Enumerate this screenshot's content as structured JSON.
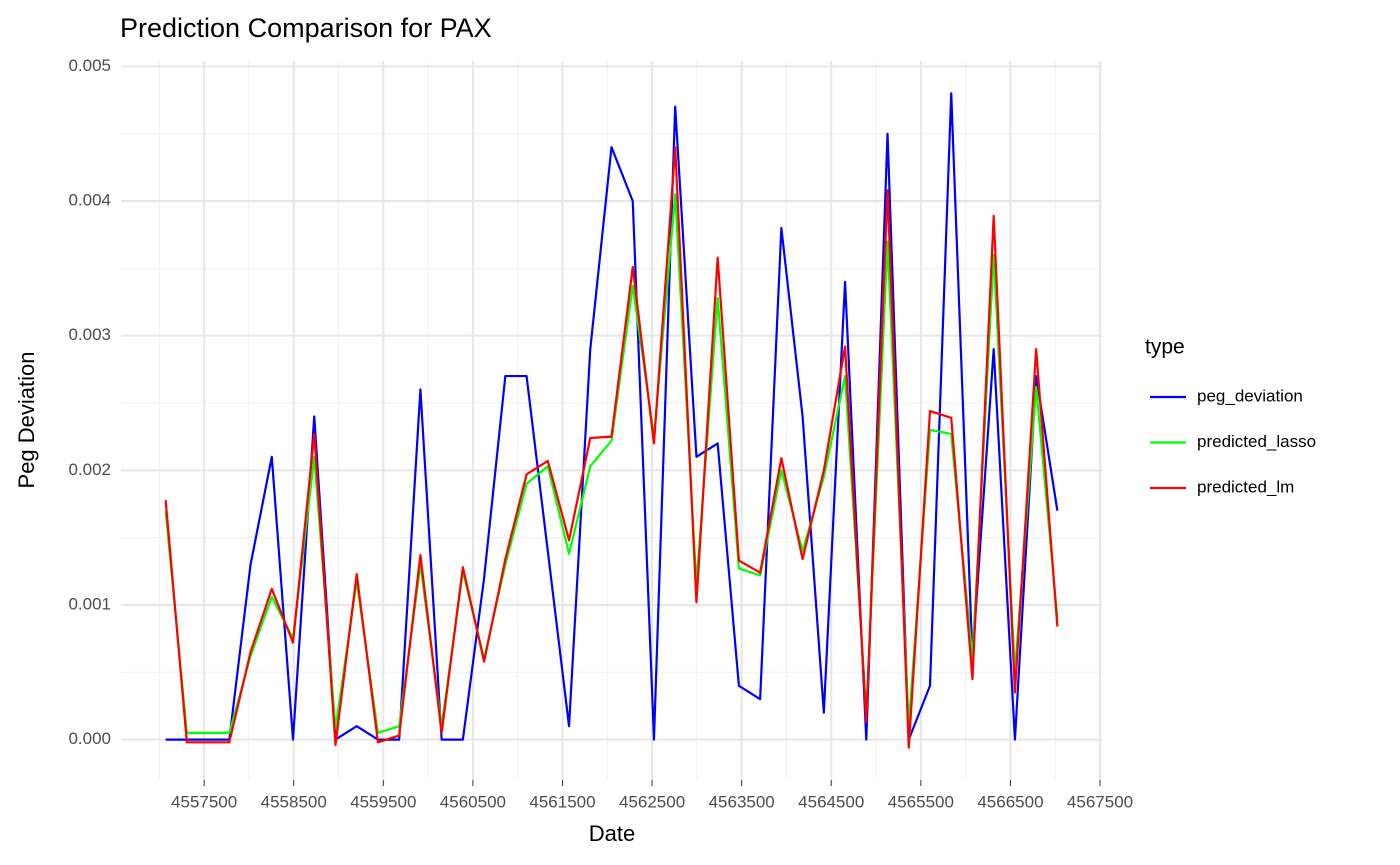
{
  "chart_data": {
    "type": "line",
    "title": "Prediction Comparison for PAX",
    "x_label": "Date",
    "y_label": "Peg Deviation",
    "legend_title": "type",
    "x": [
      4557070,
      4557307,
      4557544,
      4557781,
      4558018,
      4558255,
      4558492,
      4558729,
      4558966,
      4559203,
      4559440,
      4559677,
      4559914,
      4560151,
      4560388,
      4560625,
      4560862,
      4561099,
      4561336,
      4561573,
      4561810,
      4562047,
      4562284,
      4562521,
      4562758,
      4562995,
      4563232,
      4563469,
      4563706,
      4563943,
      4564180,
      4564417,
      4564654,
      4564891,
      4565128,
      4565365,
      4565602,
      4565839,
      4566076,
      4566313,
      4566550,
      4566787,
      4567024
    ],
    "series": [
      {
        "name": "peg_deviation",
        "color": "#0000ff",
        "values": [
          0,
          0,
          0,
          0,
          0.0013,
          0.0021,
          0,
          0.0024,
          0,
          0.0001,
          0,
          0,
          0.0026,
          0,
          0,
          0.0012,
          0.0027,
          0.0027,
          0.0014,
          0.0001,
          0.0029,
          0.0044,
          0.004,
          0,
          0.0047,
          0.0021,
          0.0022,
          0.0004,
          0.0003,
          0.0038,
          0.0024,
          0.0002,
          0.0034,
          0,
          0.0045,
          0,
          0.0004,
          0.0048,
          0.0006,
          0.0029,
          0,
          0.0027,
          0.0017
        ]
      },
      {
        "name": "predicted_lasso",
        "color": "#00ff00",
        "values": [
          0.0017,
          5e-05,
          5e-05,
          5e-05,
          0.00062,
          0.00106,
          0.00075,
          0.0021,
          8e-05,
          0.00118,
          5e-05,
          0.0001,
          0.0013,
          0.0001,
          0.00125,
          0.0006,
          0.0013,
          0.0019,
          0.00203,
          0.00138,
          0.00203,
          0.00222,
          0.00337,
          0.00225,
          0.00405,
          0.00115,
          0.00328,
          0.00127,
          0.00122,
          0.002,
          0.0014,
          0.00195,
          0.0027,
          0.0002,
          0.0037,
          0.0001,
          0.0023,
          0.00227,
          0.0006,
          0.0036,
          0.0005,
          0.00262,
          0.0009
        ]
      },
      {
        "name": "predicted_lm",
        "color": "#ff0000",
        "values": [
          0.00178,
          -2e-05,
          -2e-05,
          -2e-05,
          0.00065,
          0.00112,
          0.00072,
          0.00227,
          -4e-05,
          0.00123,
          -2e-05,
          3e-05,
          0.00137,
          5e-05,
          0.00128,
          0.00058,
          0.00134,
          0.00197,
          0.00207,
          0.00148,
          0.00224,
          0.00225,
          0.00351,
          0.0022,
          0.0044,
          0.00102,
          0.00358,
          0.00133,
          0.00124,
          0.00209,
          0.00134,
          0.002,
          0.00292,
          0.00013,
          0.00408,
          -6e-05,
          0.00244,
          0.00239,
          0.00045,
          0.00389,
          0.00035,
          0.0029,
          0.00084
        ]
      }
    ],
    "xlim": [
      4556572,
      4567522
    ],
    "xticks": [
      4557500,
      4558500,
      4559500,
      4560500,
      4561500,
      4562500,
      4563500,
      4564500,
      4565500,
      4566500,
      4567500
    ],
    "ylim": [
      -0.0003,
      0.00504
    ],
    "yticks": [
      {
        "value": 0,
        "label": "0.000"
      },
      {
        "value": 0.001,
        "label": "0.001"
      },
      {
        "value": 0.002,
        "label": "0.002"
      },
      {
        "value": 0.003,
        "label": "0.003"
      },
      {
        "value": 0.004,
        "label": "0.004"
      },
      {
        "value": 0.005,
        "label": "0.005"
      }
    ],
    "grid": true
  }
}
